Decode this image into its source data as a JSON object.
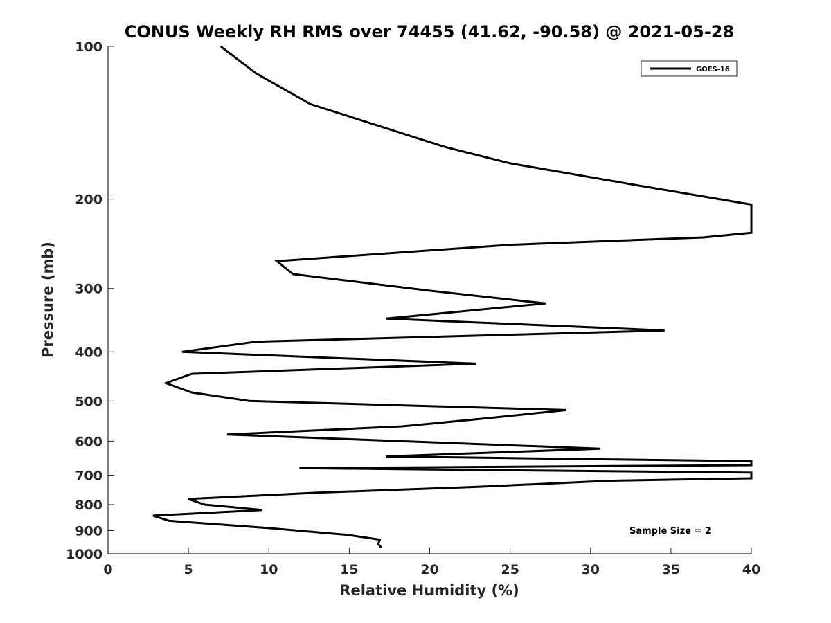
{
  "chart_data": {
    "type": "line",
    "title": "CONUS Weekly RH RMS over 74455 (41.62, -90.58) @ 2021-05-28",
    "xlabel": "Relative Humidity (%)",
    "ylabel": "Pressure (mb)",
    "xlim": [
      0,
      40
    ],
    "ylim": [
      1000,
      100
    ],
    "yscale": "log",
    "yaxis_reversed": true,
    "x_ticks": [
      0,
      5,
      10,
      15,
      20,
      25,
      30,
      35,
      40
    ],
    "y_ticks": [
      100,
      200,
      300,
      400,
      500,
      600,
      700,
      800,
      900,
      1000
    ],
    "grid": false,
    "legend_position": "top-right",
    "annotation": "Sample Size = 2",
    "series": [
      {
        "name": "GOES-16",
        "color": "#000000",
        "points": [
          [
            7.0,
            100
          ],
          [
            9.2,
            113
          ],
          [
            12.6,
            130
          ],
          [
            21.0,
            158
          ],
          [
            25.0,
            170
          ],
          [
            33.0,
            188
          ],
          [
            40.0,
            205
          ],
          [
            40.0,
            233
          ],
          [
            37.0,
            238
          ],
          [
            25.0,
            246
          ],
          [
            10.5,
            265
          ],
          [
            11.5,
            281
          ],
          [
            20.0,
            303
          ],
          [
            27.2,
            321
          ],
          [
            17.3,
            344
          ],
          [
            34.6,
            363
          ],
          [
            9.2,
            382
          ],
          [
            4.6,
            400
          ],
          [
            22.9,
            422
          ],
          [
            5.2,
            442
          ],
          [
            3.6,
            461
          ],
          [
            5.2,
            481
          ],
          [
            8.8,
            500
          ],
          [
            28.5,
            521
          ],
          [
            23.5,
            541
          ],
          [
            18.3,
            561
          ],
          [
            7.4,
            582
          ],
          [
            30.6,
            621
          ],
          [
            17.3,
            643
          ],
          [
            40.0,
            657
          ],
          [
            40.0,
            669
          ],
          [
            11.9,
            678
          ],
          [
            40.0,
            692
          ],
          [
            40.0,
            710
          ],
          [
            31.2,
            718
          ],
          [
            23.0,
            738
          ],
          [
            13.0,
            758
          ],
          [
            5.0,
            780
          ],
          [
            6.0,
            800
          ],
          [
            9.6,
            820
          ],
          [
            2.8,
            841
          ],
          [
            3.8,
            861
          ],
          [
            10.0,
            890
          ],
          [
            14.9,
            918
          ],
          [
            16.9,
            938
          ],
          [
            16.8,
            956
          ],
          [
            17.0,
            973
          ]
        ]
      }
    ]
  }
}
